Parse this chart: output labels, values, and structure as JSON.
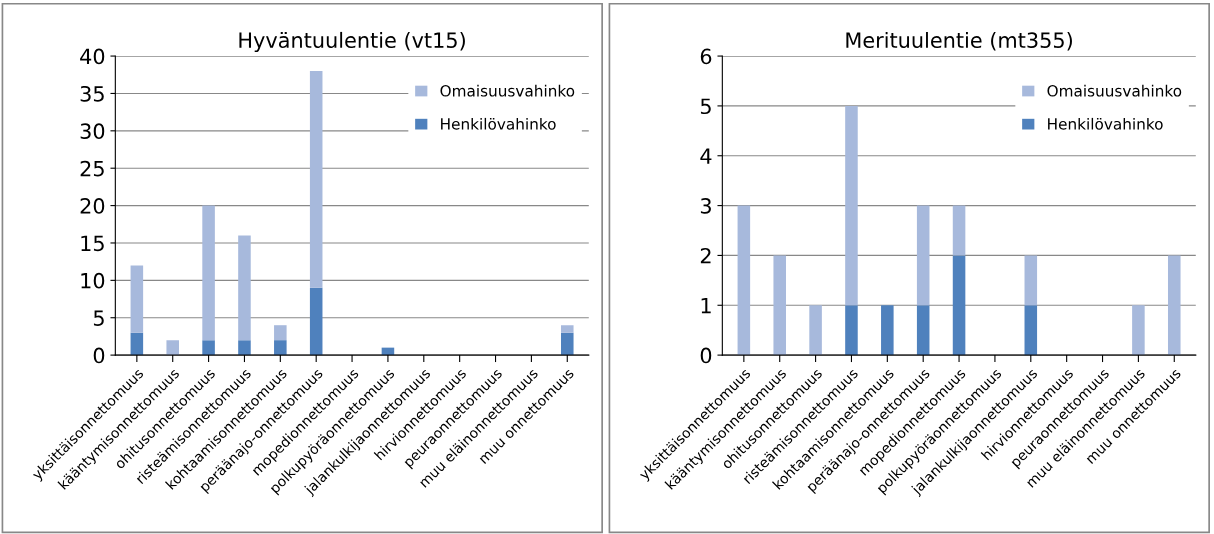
{
  "chart_data": [
    {
      "type": "bar",
      "title": "Hyväntuulentie (vt15)",
      "stacked": true,
      "categories": [
        "yksittäisonnettomuus",
        "kääntymisonnettomuus",
        "ohitusonnettomuus",
        "risteämisonnettomuus",
        "kohtaamisonnettomuus",
        "peräänajo-onnettomuus",
        "mopedionnettomuus",
        "polkupyöräonnettomuus",
        "jalankulkijaonnettomuus",
        "hirvionnettomuus",
        "peuraonnettomuus",
        "muu eläinonnettomuus",
        "muu onnettomuus"
      ],
      "series": [
        {
          "name": "Henkilövahinko",
          "color": "#4f81bd",
          "values": [
            3,
            0,
            2,
            2,
            2,
            9,
            0,
            1,
            0,
            0,
            0,
            0,
            3
          ]
        },
        {
          "name": "Omaisuusvahinko",
          "color": "#a7b9dc",
          "values": [
            9,
            2,
            18,
            14,
            2,
            29,
            0,
            0,
            0,
            0,
            0,
            0,
            1
          ]
        }
      ],
      "ylim": [
        0,
        40
      ],
      "yticks": [
        0,
        5,
        10,
        15,
        20,
        25,
        30,
        35,
        40
      ],
      "grid": "y",
      "legend": "top right"
    },
    {
      "type": "bar",
      "title": "Merituulentie (mt355)",
      "stacked": true,
      "categories": [
        "yksittäisonnettomuus",
        "kääntymisonnettomuus",
        "ohitusonnettomuus",
        "risteämisonnettomuus",
        "kohtaamisonnettomuus",
        "peräänajo-onnettomuus",
        "mopedionnettomuus",
        "polkupyöräonnettomuus",
        "jalankulkijaonnettomuus",
        "hirvionnettomuus",
        "peuraonnettomuus",
        "muu eläinonnettomuus",
        "muu onnettomuus"
      ],
      "series": [
        {
          "name": "Henkilövahinko",
          "color": "#4f81bd",
          "values": [
            0,
            0,
            0,
            1,
            1,
            1,
            2,
            0,
            1,
            0,
            0,
            0,
            0
          ]
        },
        {
          "name": "Omaisuusvahinko",
          "color": "#a7b9dc",
          "values": [
            3,
            2,
            1,
            4,
            0,
            2,
            1,
            0,
            1,
            0,
            0,
            1,
            2
          ]
        }
      ],
      "ylim": [
        0,
        6
      ],
      "yticks": [
        0,
        1,
        2,
        3,
        4,
        5,
        6
      ],
      "grid": "y",
      "legend": "top right"
    }
  ]
}
